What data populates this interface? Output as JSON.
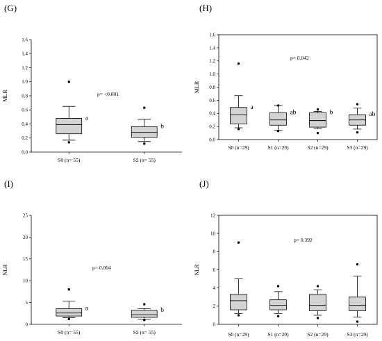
{
  "panels_labels": [
    "(G)",
    "(H)",
    "(I)",
    "(J)"
  ],
  "colors": {
    "box_fill": "#d3d3d3",
    "stroke": "#000000",
    "background": "#ffffff"
  },
  "chart_data": [
    {
      "panel": "(G)",
      "type": "box",
      "ylabel": "MLR",
      "ylim": [
        0,
        1.6
      ],
      "yticks": [
        "0.0",
        "0.2",
        "0.4",
        "0.6",
        "0.8",
        "1.0",
        "1.2",
        "1.4",
        "1.6"
      ],
      "annotation": "p= <0.001",
      "frame": false,
      "categories": [
        "S0 (n= 55)",
        "S2 (n= 55)"
      ],
      "boxes": [
        {
          "whisker_low": 0.17,
          "q1": 0.26,
          "median": 0.39,
          "q3": 0.48,
          "whisker_high": 0.65,
          "outliers": [
            0.14,
            1.0
          ],
          "letter": "a"
        },
        {
          "whisker_low": 0.15,
          "q1": 0.21,
          "median": 0.28,
          "q3": 0.36,
          "whisker_high": 0.47,
          "outliers": [
            0.12,
            0.63
          ],
          "letter": "b"
        }
      ]
    },
    {
      "panel": "(H)",
      "type": "box",
      "ylabel": "MLR",
      "ylim": [
        0,
        1.6
      ],
      "yticks": [
        "0.0",
        "0.2",
        "0.4",
        "0.6",
        "0.8",
        "1.0",
        "1.2",
        "1.4",
        "1.6"
      ],
      "annotation": "p= 0.042",
      "frame": true,
      "categories": [
        "S0 (n=29)",
        "S1 (n=29)",
        "S2 (n=29)",
        "S3 (n=29)"
      ],
      "boxes": [
        {
          "whisker_low": 0.18,
          "q1": 0.24,
          "median": 0.38,
          "q3": 0.49,
          "whisker_high": 0.67,
          "outliers": [
            0.16,
            1.16
          ],
          "letter": "a"
        },
        {
          "whisker_low": 0.14,
          "q1": 0.22,
          "median": 0.3,
          "q3": 0.41,
          "whisker_high": 0.52,
          "outliers": [
            0.13,
            0.52
          ],
          "letter": "ab"
        },
        {
          "whisker_low": 0.17,
          "q1": 0.19,
          "median": 0.29,
          "q3": 0.41,
          "whisker_high": 0.43,
          "outliers": [
            0.1,
            0.46
          ],
          "letter": "b"
        },
        {
          "whisker_low": 0.16,
          "q1": 0.22,
          "median": 0.3,
          "q3": 0.38,
          "whisker_high": 0.48,
          "outliers": [
            0.11,
            0.54
          ],
          "letter": "ab"
        }
      ]
    },
    {
      "panel": "(I)",
      "type": "box",
      "ylabel": "NLR",
      "ylim": [
        0,
        25
      ],
      "yticks": [
        "0",
        "5",
        "10",
        "15",
        "20",
        "25"
      ],
      "annotation": "p= 0.004",
      "frame": false,
      "categories": [
        "S0 (n= 55)",
        "S2 (n= 55)"
      ],
      "boxes": [
        {
          "whisker_low": 1.5,
          "q1": 1.9,
          "median": 2.6,
          "q3": 3.6,
          "whisker_high": 5.3,
          "outliers": [
            1.2,
            8.0
          ],
          "letter": "a"
        },
        {
          "whisker_low": 1.2,
          "q1": 1.6,
          "median": 2.2,
          "q3": 3.2,
          "whisker_high": 3.6,
          "outliers": [
            1.0,
            4.6
          ],
          "letter": "b"
        }
      ]
    },
    {
      "panel": "(J)",
      "type": "box",
      "ylabel": "NLR",
      "ylim": [
        0,
        12
      ],
      "yticks": [
        "0",
        "2",
        "4",
        "6",
        "8",
        "10",
        "12"
      ],
      "annotation": "p= 0.392",
      "frame": true,
      "categories": [
        "S0 (n=29)",
        "S1 (n=29)",
        "S2 (n=29)",
        "S3 (n=29)"
      ],
      "boxes": [
        {
          "whisker_low": 1.2,
          "q1": 1.6,
          "median": 2.6,
          "q3": 3.3,
          "whisker_high": 5.0,
          "outliers": [
            1.0,
            9.0
          ],
          "letter": ""
        },
        {
          "whisker_low": 1.2,
          "q1": 1.6,
          "median": 2.1,
          "q3": 2.7,
          "whisker_high": 3.6,
          "outliers": [
            0.9,
            4.2
          ],
          "letter": ""
        },
        {
          "whisker_low": 1.0,
          "q1": 1.5,
          "median": 2.1,
          "q3": 3.3,
          "whisker_high": 3.8,
          "outliers": [
            0.7,
            4.2
          ],
          "letter": ""
        },
        {
          "whisker_low": 0.8,
          "q1": 1.5,
          "median": 2.1,
          "q3": 3.0,
          "whisker_high": 5.3,
          "outliers": [
            0.3,
            6.6
          ],
          "letter": ""
        }
      ]
    }
  ]
}
